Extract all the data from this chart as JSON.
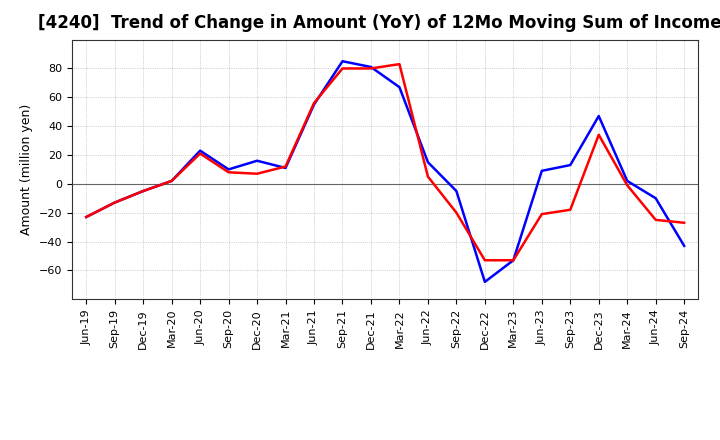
{
  "title": "[4240]  Trend of Change in Amount (YoY) of 12Mo Moving Sum of Incomes",
  "ylabel": "Amount (million yen)",
  "x_labels": [
    "Jun-19",
    "Sep-19",
    "Dec-19",
    "Mar-20",
    "Jun-20",
    "Sep-20",
    "Dec-20",
    "Mar-21",
    "Jun-21",
    "Sep-21",
    "Dec-21",
    "Mar-22",
    "Jun-22",
    "Sep-22",
    "Dec-22",
    "Mar-23",
    "Jun-23",
    "Sep-23",
    "Dec-23",
    "Mar-24",
    "Jun-24",
    "Sep-24"
  ],
  "ordinary_income": [
    -23,
    -13,
    -5,
    2,
    23,
    10,
    16,
    11,
    55,
    85,
    81,
    67,
    15,
    -5,
    -68,
    -53,
    9,
    13,
    47,
    2,
    -10,
    -43
  ],
  "net_income": [
    -23,
    -13,
    -5,
    2,
    21,
    8,
    7,
    12,
    56,
    80,
    80,
    83,
    5,
    -20,
    -53,
    -53,
    -21,
    -18,
    34,
    -1,
    -25,
    -27
  ],
  "ordinary_color": "#0000ff",
  "net_color": "#ff0000",
  "background_color": "#ffffff",
  "plot_bg_color": "#ffffff",
  "grid_color": "#aaaaaa",
  "ylim": [
    -80,
    100
  ],
  "yticks": [
    -60,
    -40,
    -20,
    0,
    20,
    40,
    60,
    80
  ],
  "title_fontsize": 12,
  "axis_fontsize": 9,
  "legend_fontsize": 9,
  "tick_fontsize": 8,
  "line_width": 1.8
}
